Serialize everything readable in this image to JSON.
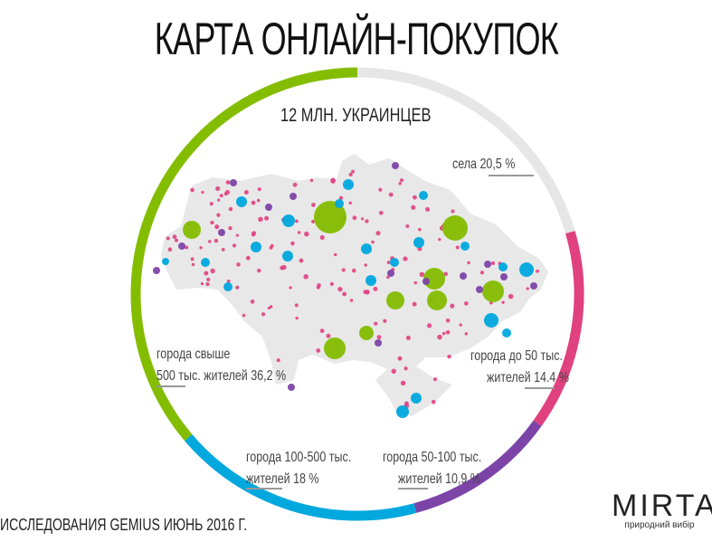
{
  "title": "КАРТА ОНЛАЙН-ПОКУПОК",
  "subtitle": "12 МЛН. УКРАИНЦЕВ",
  "source": "ИССЛЕДОВАНИЯ GEMIUS ИЮНЬ 2016 Г.",
  "logo": {
    "name": "MIRTA",
    "tagline": "природний вибір"
  },
  "labels": {
    "villages": "села 20,5 %",
    "small_1": "города до 50 тыс.",
    "small_2": "жителей 14.4 %",
    "mid_1": "города 50-100 тыс.",
    "mid_2": "жителей 10,9 %",
    "large_1": "города 100-500 тыс.",
    "large_2": "жителей 18 %",
    "big_1": "города свыше",
    "big_2": "500 тыс. жителей 36,2 %"
  },
  "chart_data": {
    "type": "pie",
    "style": "ring",
    "title": "12 МЛН. УКРАИНЦЕВ",
    "start": "top, clockwise",
    "series": [
      {
        "name": "села",
        "value": 20.5,
        "color": "#e6e6e6"
      },
      {
        "name": "города до 50 тыс. жителей",
        "value": 14.4,
        "color": "#e0417f"
      },
      {
        "name": "города 50-100 тыс. жителей",
        "value": 10.9,
        "color": "#7d44a8"
      },
      {
        "name": "города 100-500 тыс. жителей",
        "value": 18,
        "color": "#00a8de"
      },
      {
        "name": "города свыше 500 тыс. жителей",
        "value": 36.2,
        "color": "#84bd00"
      }
    ]
  }
}
